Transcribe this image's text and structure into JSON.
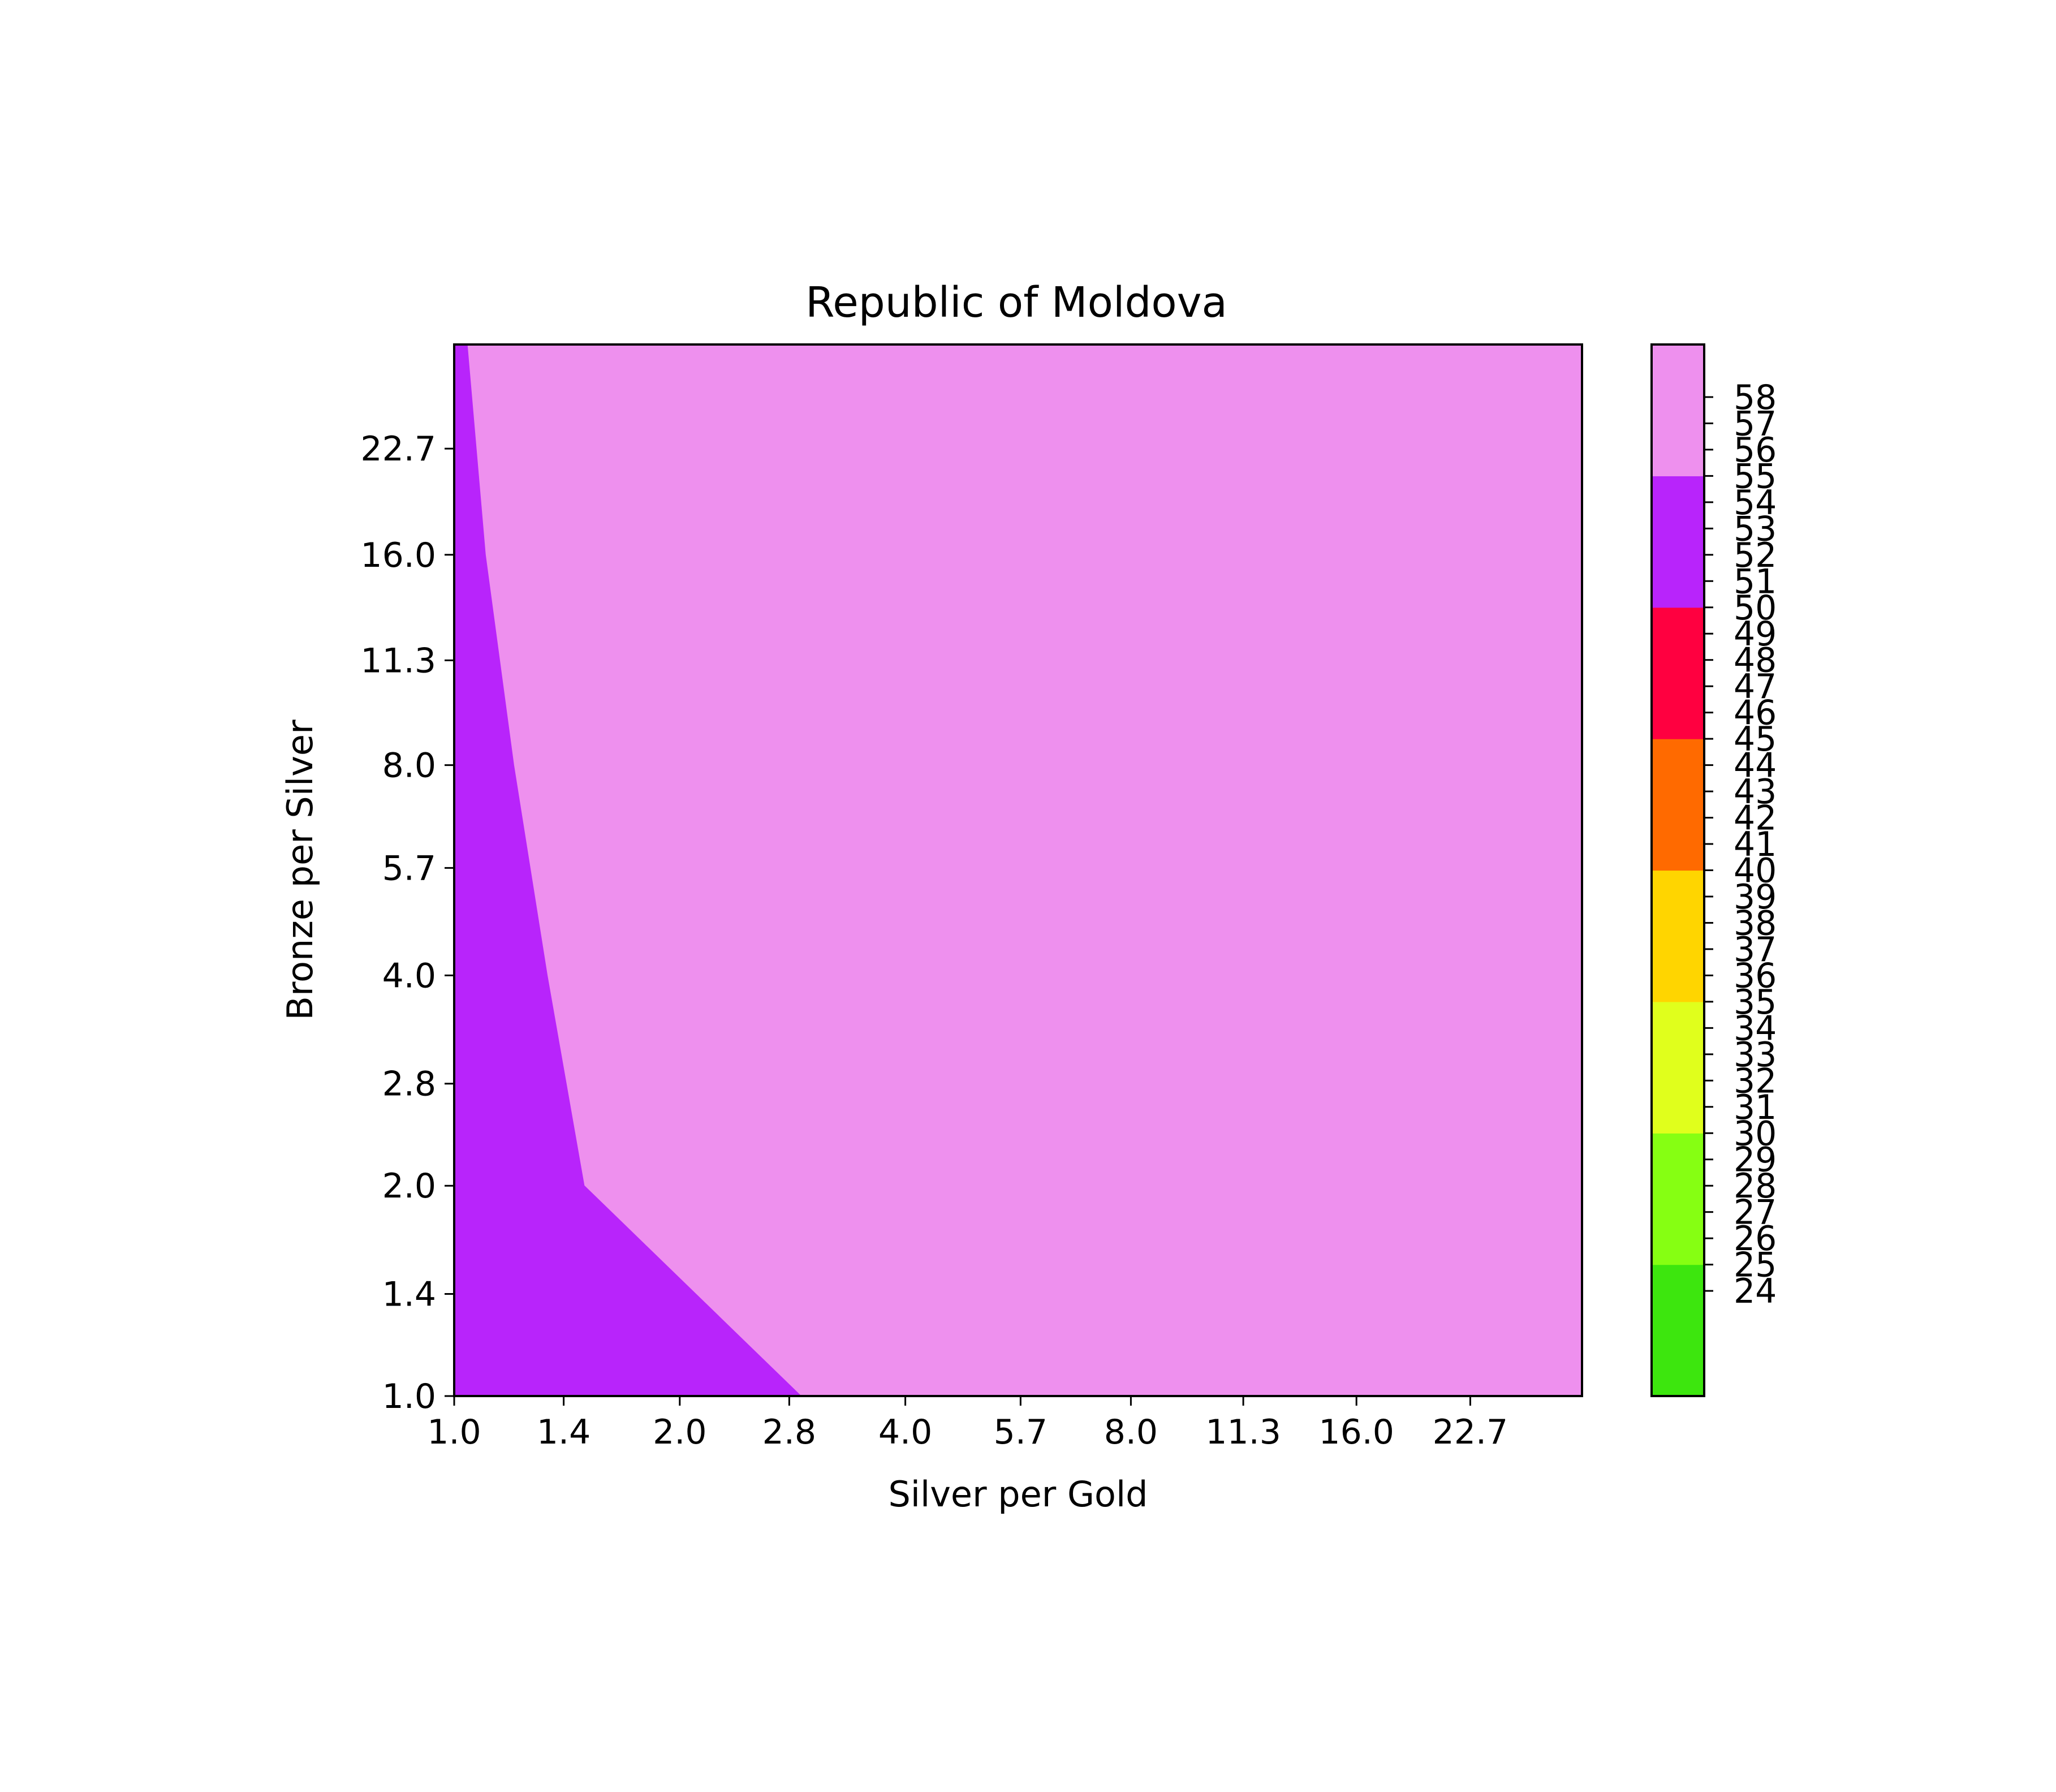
{
  "chart_data": {
    "type": "heatmap",
    "title": "Republic of Moldova",
    "xlabel": "Silver per Gold",
    "ylabel": "Bronze per Silver",
    "x_scale": "log2",
    "y_scale": "log2",
    "xlim": [
      1.0,
      32.0
    ],
    "ylim": [
      1.0,
      32.0
    ],
    "x_ticks": [
      "1.0",
      "1.4",
      "2.0",
      "2.8",
      "4.0",
      "5.7",
      "8.0",
      "11.3",
      "16.0",
      "22.7"
    ],
    "y_ticks": [
      "1.0",
      "1.4",
      "2.0",
      "2.8",
      "4.0",
      "5.7",
      "8.0",
      "11.3",
      "16.0",
      "22.7"
    ],
    "regions": [
      {
        "level": "55-60",
        "color": "#ee90ee",
        "boundary": "full-plot"
      },
      {
        "level": "50-55",
        "color": "#b824fb",
        "boundary": [
          [
            1.0,
            1.0
          ],
          [
            2.9,
            1.0
          ],
          [
            1.49,
            2.0
          ],
          [
            1.33,
            4.0
          ],
          [
            1.2,
            8.0
          ],
          [
            1.1,
            16.0
          ],
          [
            1.04,
            32.0
          ],
          [
            1.0,
            32.0
          ]
        ]
      }
    ],
    "colorbar": {
      "range": [
        20,
        60
      ],
      "bands": [
        {
          "from": 20,
          "to": 25,
          "color": "#3de60e"
        },
        {
          "from": 25,
          "to": 30,
          "color": "#86ff12"
        },
        {
          "from": 30,
          "to": 35,
          "color": "#e0ff1c"
        },
        {
          "from": 35,
          "to": 40,
          "color": "#ffd500"
        },
        {
          "from": 40,
          "to": 45,
          "color": "#ff6a00"
        },
        {
          "from": 45,
          "to": 50,
          "color": "#ff0040"
        },
        {
          "from": 50,
          "to": 55,
          "color": "#b824fb"
        },
        {
          "from": 55,
          "to": 60,
          "color": "#ee90ee"
        }
      ],
      "ticks": [
        24,
        25,
        26,
        27,
        28,
        29,
        30,
        31,
        32,
        33,
        34,
        35,
        36,
        37,
        38,
        39,
        40,
        41,
        42,
        43,
        44,
        45,
        46,
        47,
        48,
        49,
        50,
        51,
        52,
        53,
        54,
        55,
        56,
        57,
        58
      ]
    }
  }
}
